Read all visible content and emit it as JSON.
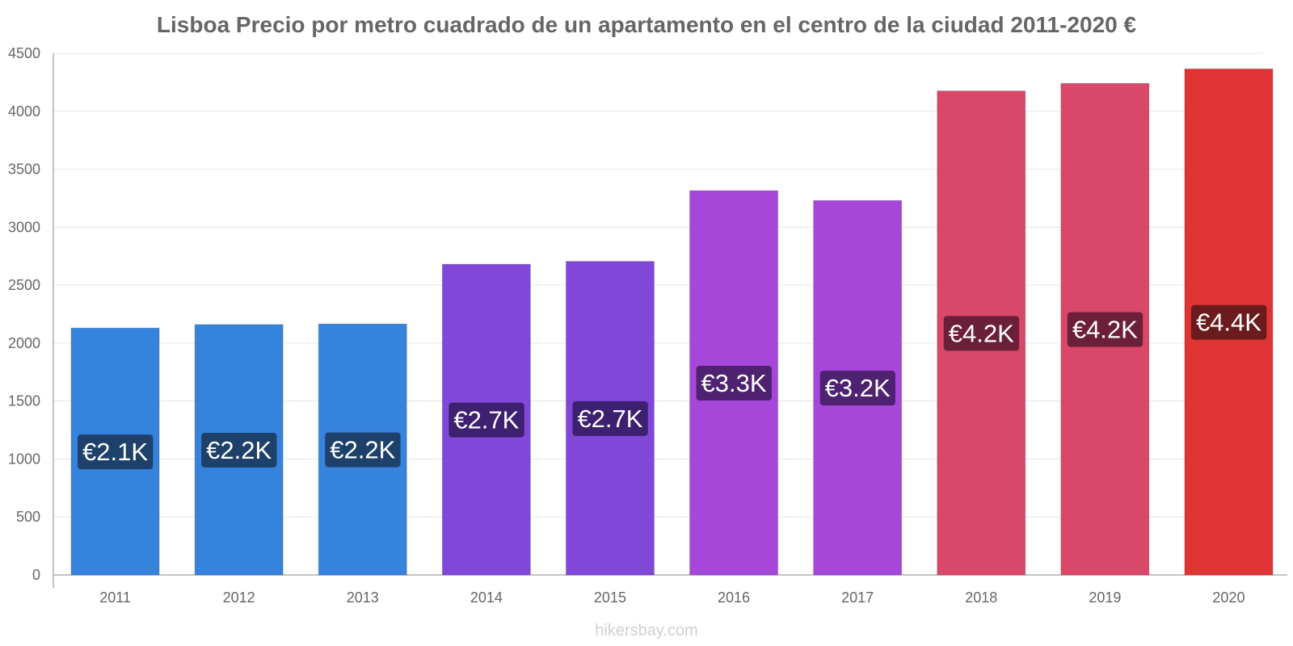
{
  "chart_data": {
    "type": "bar",
    "title": "Lisboa Precio por metro cuadrado de un apartamento en el centro de la ciudad 2011-2020 €",
    "categories": [
      "2011",
      "2012",
      "2013",
      "2014",
      "2015",
      "2016",
      "2017",
      "2018",
      "2019",
      "2020"
    ],
    "values": [
      2130,
      2160,
      2165,
      2680,
      2705,
      3315,
      3230,
      4175,
      4240,
      4365
    ],
    "data_labels": [
      "€2.1K",
      "€2.2K",
      "€2.2K",
      "€2.7K",
      "€2.7K",
      "€3.3K",
      "€3.2K",
      "€4.2K",
      "€4.2K",
      "€4.4K"
    ],
    "bar_colors": [
      "#3683de",
      "#3683de",
      "#3683de",
      "#8147d9",
      "#8147d9",
      "#a647d9",
      "#a647d9",
      "#d94868",
      "#d94868",
      "#e03434"
    ],
    "label_bg_colors": [
      "#1e416b",
      "#1e416b",
      "#1e416b",
      "#3d2070",
      "#3d2070",
      "#4e2270",
      "#4e2270",
      "#6b1f38",
      "#6b1f38",
      "#6b1b1b"
    ],
    "ylim": [
      0,
      4500
    ],
    "yticks": [
      0,
      500,
      1000,
      1500,
      2000,
      2500,
      3000,
      3500,
      4000,
      4500
    ],
    "xlabel": "",
    "ylabel": "",
    "grid": true
  },
  "watermark": "hikersbay.com"
}
